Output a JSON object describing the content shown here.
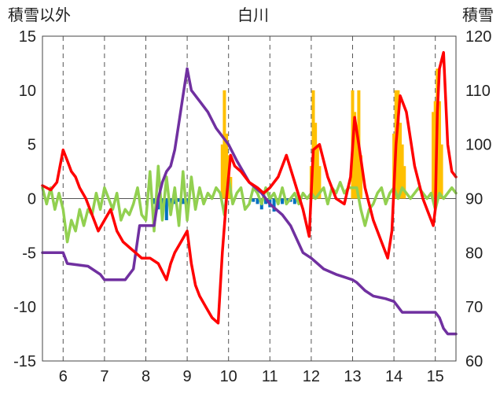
{
  "chart_data": {
    "type": "line",
    "title": "白川",
    "ylabel_left": "積雪以外",
    "ylabel_right": "積雪",
    "xlim": [
      5.5,
      15.5
    ],
    "ylim_left": [
      -15,
      15
    ],
    "ylim_right": [
      60,
      120
    ],
    "x_ticks": [
      6,
      7,
      8,
      9,
      10,
      11,
      12,
      13,
      14,
      15
    ],
    "y_ticks_left": [
      -15,
      -10,
      -5,
      0,
      5,
      10,
      15
    ],
    "y_ticks_right": [
      60,
      70,
      80,
      90,
      100,
      110,
      120
    ],
    "grid": "dashed-vertical",
    "legend": "none",
    "colors": {
      "red": "#ff0000",
      "purple": "#7030a0",
      "green": "#92d050",
      "orange": "#ffc000",
      "blue": "#0070c0"
    },
    "series": [
      {
        "axis": "left",
        "color": "#ff0000",
        "x": [
          5.5,
          5.7,
          5.85,
          6.0,
          6.1,
          6.2,
          6.3,
          6.4,
          6.55,
          6.7,
          6.85,
          7.0,
          7.15,
          7.3,
          7.45,
          7.6,
          7.75,
          7.9,
          8.0,
          8.1,
          8.3,
          8.5,
          8.6,
          8.7,
          8.85,
          9.0,
          9.1,
          9.2,
          9.3,
          9.45,
          9.6,
          9.75,
          9.85,
          9.95,
          10.05,
          10.15,
          10.3,
          10.5,
          10.7,
          10.85,
          11.0,
          11.2,
          11.4,
          11.6,
          11.8,
          11.95,
          12.05,
          12.2,
          12.4,
          12.6,
          12.8,
          12.95,
          13.05,
          13.15,
          13.3,
          13.5,
          13.7,
          13.85,
          13.95,
          14.05,
          14.15,
          14.3,
          14.5,
          14.7,
          14.85,
          14.95,
          15.0,
          15.05,
          15.1,
          15.2,
          15.3,
          15.4,
          15.5
        ],
        "y": [
          1.2,
          0.8,
          1.5,
          4.5,
          3.5,
          2.5,
          2.0,
          1.0,
          0.0,
          -1.5,
          -3.0,
          -2.0,
          -1.0,
          -3.0,
          -4.0,
          -4.5,
          -5.0,
          -5.5,
          -5.5,
          -5.5,
          -6.0,
          -7.5,
          -6.0,
          -5.0,
          -4.0,
          -3.0,
          -6.0,
          -8.0,
          -9.0,
          -10.0,
          -11.0,
          -11.5,
          -5.0,
          0.0,
          4.0,
          3.0,
          2.5,
          1.5,
          1.0,
          0.5,
          1.0,
          2.0,
          4.0,
          1.5,
          -1.0,
          -3.5,
          4.5,
          5.0,
          2.0,
          0.0,
          -0.5,
          2.0,
          7.5,
          5.0,
          1.0,
          -2.0,
          -4.0,
          -5.5,
          -3.0,
          5.0,
          9.5,
          8.0,
          3.0,
          0.0,
          -1.5,
          -2.5,
          -1.0,
          8.0,
          12.0,
          13.5,
          5.0,
          2.5,
          2.0
        ]
      },
      {
        "axis": "right",
        "color": "#7030a0",
        "x": [
          5.5,
          6.0,
          6.1,
          6.6,
          6.9,
          7.0,
          7.3,
          7.5,
          7.7,
          7.85,
          8.0,
          8.2,
          8.3,
          8.4,
          8.5,
          8.6,
          8.7,
          8.8,
          8.9,
          9.0,
          9.05,
          9.1,
          9.3,
          9.5,
          9.7,
          10.0,
          10.2,
          10.5,
          10.8,
          11.0,
          11.3,
          11.5,
          11.8,
          12.0,
          12.3,
          12.6,
          12.8,
          13.0,
          13.1,
          13.3,
          13.5,
          13.8,
          14.0,
          14.2,
          14.5,
          14.8,
          15.0,
          15.1,
          15.2,
          15.3,
          15.5
        ],
        "y": [
          80.0,
          80.0,
          78.0,
          77.5,
          76.0,
          75.0,
          75.0,
          75.0,
          77.0,
          85.0,
          85.0,
          85.0,
          90.0,
          93.0,
          95.0,
          96.0,
          99.0,
          104.0,
          109.0,
          114.0,
          112.0,
          110.0,
          108.0,
          106.0,
          103.0,
          100.0,
          97.0,
          93.0,
          91.0,
          89.0,
          87.0,
          85.0,
          80.0,
          79.0,
          77.0,
          76.0,
          75.5,
          75.0,
          74.5,
          73.0,
          72.0,
          71.5,
          71.0,
          69.0,
          69.0,
          69.0,
          69.0,
          68.0,
          66.0,
          65.0,
          65.0
        ]
      },
      {
        "axis": "left",
        "color": "#92d050",
        "x": [
          5.5,
          5.6,
          5.7,
          5.8,
          5.9,
          6.0,
          6.1,
          6.2,
          6.3,
          6.4,
          6.5,
          6.6,
          6.7,
          6.8,
          6.9,
          7.0,
          7.1,
          7.2,
          7.3,
          7.4,
          7.5,
          7.6,
          7.7,
          7.8,
          7.9,
          8.0,
          8.1,
          8.2,
          8.3,
          8.4,
          8.5,
          8.6,
          8.7,
          8.8,
          8.9,
          9.0,
          9.1,
          9.2,
          9.3,
          9.4,
          9.5,
          9.6,
          9.7,
          9.8,
          9.9,
          10.0,
          10.1,
          10.2,
          10.3,
          10.4,
          10.5,
          10.6,
          10.7,
          10.8,
          10.9,
          11.0,
          11.1,
          11.2,
          11.3,
          11.4,
          11.5,
          11.6,
          11.7,
          11.8,
          11.9,
          12.0,
          12.1,
          12.2,
          12.3,
          12.4,
          12.5,
          12.6,
          12.7,
          12.8,
          12.9,
          13.0,
          13.1,
          13.2,
          13.3,
          13.4,
          13.5,
          13.6,
          13.7,
          13.8,
          13.9,
          14.0,
          14.1,
          14.2,
          14.3,
          14.4,
          14.5,
          14.6,
          14.7,
          14.8,
          14.9,
          15.0,
          15.1,
          15.2,
          15.3,
          15.4,
          15.5
        ],
        "y": [
          1.0,
          -0.5,
          1.0,
          -1.0,
          0.5,
          -1.0,
          -4.0,
          -2.0,
          -3.0,
          -1.0,
          -2.5,
          -1.0,
          -1.5,
          0.5,
          -1.0,
          1.0,
          0.0,
          -1.0,
          0.5,
          -2.0,
          -1.0,
          -1.5,
          -0.5,
          1.0,
          -1.5,
          -2.0,
          2.5,
          -3.0,
          3.0,
          -2.0,
          2.0,
          -1.5,
          1.0,
          -2.5,
          2.5,
          -2.0,
          2.0,
          -1.0,
          1.0,
          -0.5,
          0.5,
          0.0,
          1.0,
          0.5,
          -1.5,
          2.0,
          -0.5,
          0.5,
          1.0,
          -1.0,
          -0.5,
          1.0,
          0.5,
          -0.5,
          1.0,
          0.0,
          0.5,
          -0.5,
          1.0,
          -0.5,
          0.0,
          0.5,
          -0.5,
          0.5,
          0.0,
          0.5,
          0.0,
          0.5,
          1.0,
          -0.5,
          1.0,
          0.5,
          1.5,
          0.5,
          1.0,
          1.0,
          1.0,
          -1.0,
          -2.5,
          -1.0,
          -0.5,
          0.5,
          1.0,
          -0.5,
          0.5,
          1.0,
          0.0,
          1.0,
          0.5,
          0.0,
          0.5,
          1.0,
          0.5,
          0.0,
          0.5,
          -1.0,
          0.5,
          0.0,
          0.5,
          1.0,
          0.5
        ]
      }
    ],
    "bars_orange": {
      "axis": "left",
      "color": "#ffc000",
      "x": [
        9.85,
        9.9,
        9.95,
        10.0,
        10.05,
        12.0,
        12.05,
        12.1,
        12.15,
        12.2,
        13.0,
        13.05,
        13.1,
        13.15,
        13.2,
        14.0,
        14.05,
        14.1,
        14.15,
        14.2,
        14.25,
        14.95,
        15.0,
        15.05,
        15.1,
        15.15
      ],
      "values": [
        5.0,
        10.0,
        6.0,
        4.0,
        2.0,
        3.0,
        10.0,
        7.0,
        5.0,
        3.0,
        10.0,
        8.0,
        6.0,
        10.0,
        4.0,
        6.0,
        10.0,
        10.0,
        7.0,
        5.0,
        3.0,
        8.0,
        9.0,
        12.0,
        9.0,
        5.0
      ]
    },
    "bars_blue": {
      "axis": "left",
      "color": "#0070c0",
      "x": [
        8.2,
        8.3,
        8.4,
        8.5,
        8.6,
        8.7,
        8.8,
        8.9,
        9.0,
        10.6,
        10.7,
        10.8,
        10.9,
        11.0,
        11.1,
        11.2,
        11.3,
        11.4,
        11.5,
        11.6,
        11.7
      ],
      "values": [
        -0.5,
        -1.0,
        -1.5,
        -2.0,
        -0.8,
        -0.5,
        -0.3,
        -0.5,
        -0.3,
        -0.3,
        -0.5,
        -1.0,
        -0.5,
        -0.8,
        -1.2,
        -0.5,
        -0.5,
        -0.3,
        -0.3,
        -0.5,
        -0.3
      ]
    }
  }
}
